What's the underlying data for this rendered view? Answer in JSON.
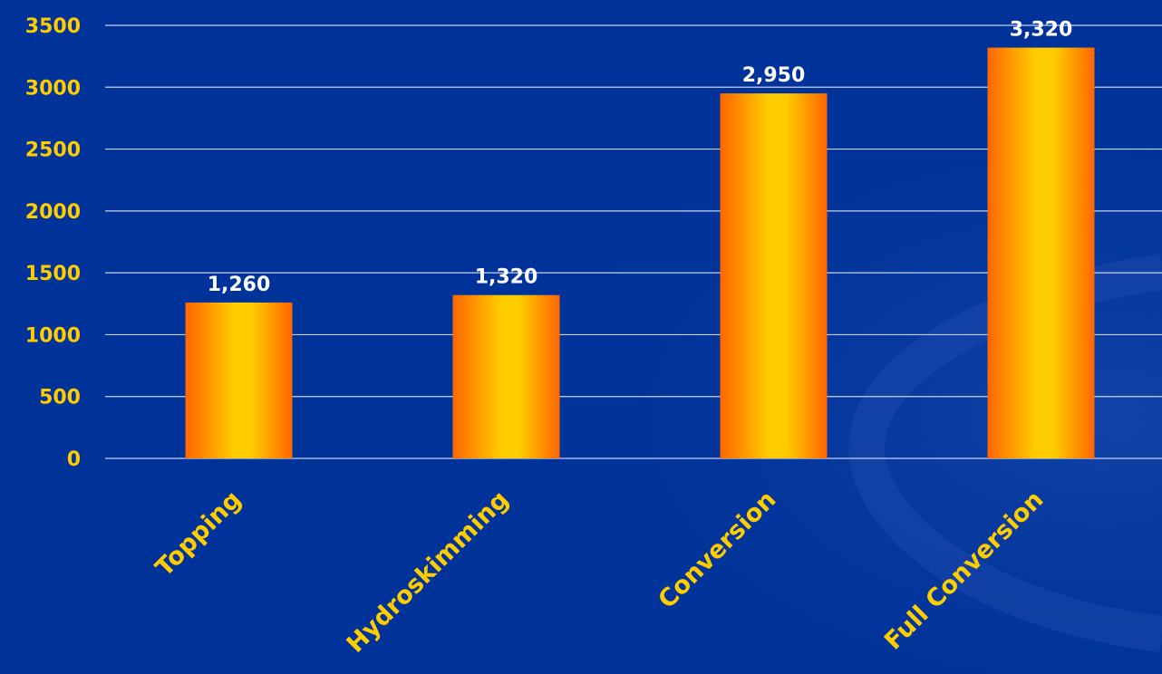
{
  "colors": {
    "background": "#003399",
    "gridline": "#c8d0e8",
    "tick_text": "#ffcc00",
    "data_label": "#ffffff",
    "bar_edge": "#ff6600",
    "bar_center": "#ffcc00"
  },
  "chart_data": {
    "type": "bar",
    "categories": [
      "Topping",
      "Hydroskimming",
      "Conversion",
      "Full Conversion"
    ],
    "values": [
      1260,
      1320,
      2950,
      3320
    ],
    "data_labels": [
      "1,260",
      "1,320",
      "2,950",
      "3,320"
    ],
    "title": "",
    "xlabel": "",
    "ylabel": "",
    "ylim": [
      0,
      3500
    ],
    "yticks": [
      0,
      500,
      1000,
      1500,
      2000,
      2500,
      3000,
      3500
    ],
    "ytick_labels": [
      "0",
      "500",
      "1000",
      "1500",
      "2000",
      "2500",
      "3000",
      "3500"
    ],
    "grid": true,
    "legend": "none"
  }
}
